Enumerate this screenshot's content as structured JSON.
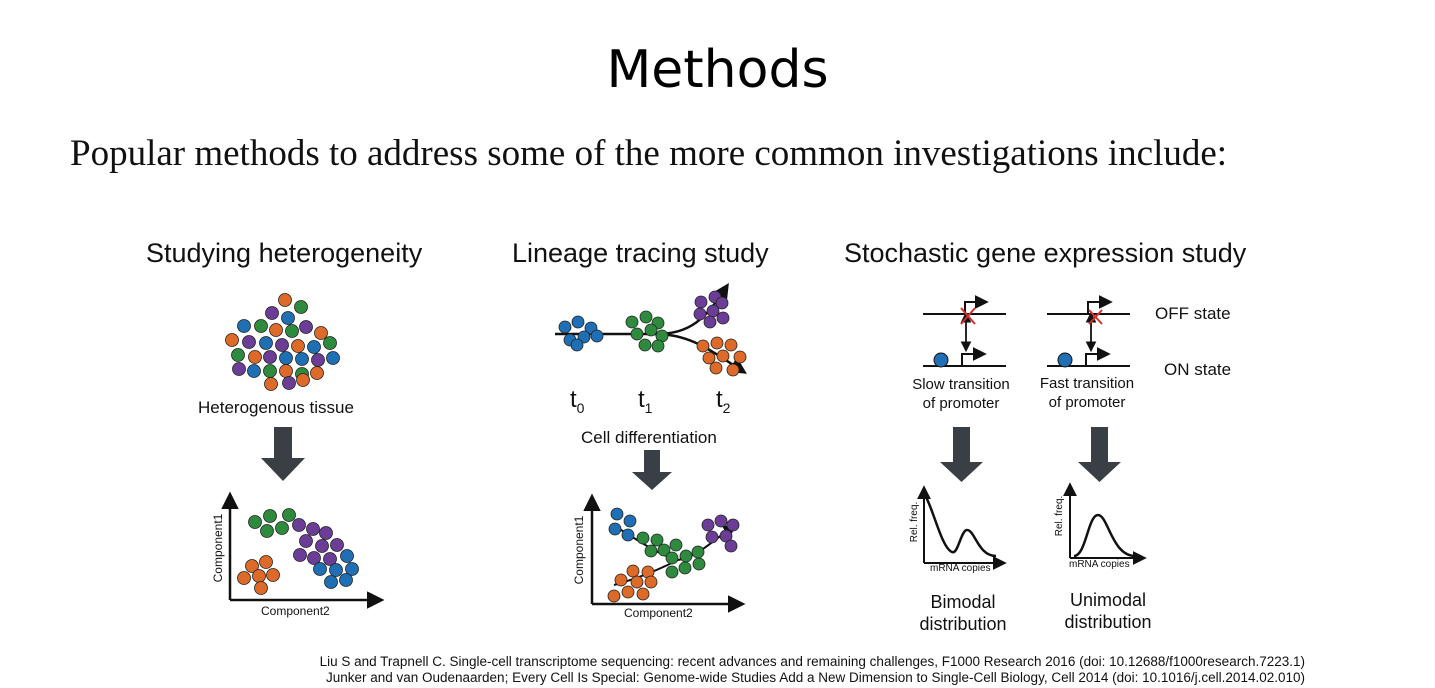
{
  "slide": {
    "title": "Methods",
    "subtitle": "Popular methods to address some of the more common investigations include:"
  },
  "panels": {
    "heterogeneity": {
      "title": "Studying heterogeneity",
      "tissue_label": "Heterogenous tissue",
      "y_label": "Component1",
      "x_label": "Component2"
    },
    "lineage": {
      "title": "Lineage tracing study",
      "t0": "t",
      "t0_sub": "0",
      "t1": "t",
      "t1_sub": "1",
      "t2": "t",
      "t2_sub": "2",
      "caption": "Cell differentiation",
      "y_label": "Component1",
      "x_label": "Component2"
    },
    "stochastic": {
      "title": "Stochastic gene expression study",
      "off_state": "OFF state",
      "on_state": "ON state",
      "slow_line1": "Slow transition",
      "slow_line2": "of promoter",
      "fast_line1": "Fast transition",
      "fast_line2": "of promoter",
      "y_label": "Rel. freq.",
      "x_label": "mRNA copies",
      "bimodal_line1": "Bimodal",
      "bimodal_line2": "distribution",
      "unimodal_line1": "Unimodal",
      "unimodal_line2": "distribution"
    }
  },
  "references": [
    "Liu S and Trapnell C. Single-cell transcriptome sequencing: recent advances and remaining challenges, F1000 Research 2016  (doi: 10.12688/f1000research.7223.1)",
    "Junker and van Oudenaarden; Every Cell Is Special: Genome-wide Studies Add a New Dimension to Single-Cell Biology, Cell 2014  (doi: 10.1016/j.cell.2014.02.010)"
  ],
  "colors": {
    "blue": "#1f6fb5",
    "green": "#2e8b3e",
    "orange": "#dd6a28",
    "purple": "#6c3d97",
    "arrow": "#3a3f45",
    "cross": "#d32f2f"
  }
}
